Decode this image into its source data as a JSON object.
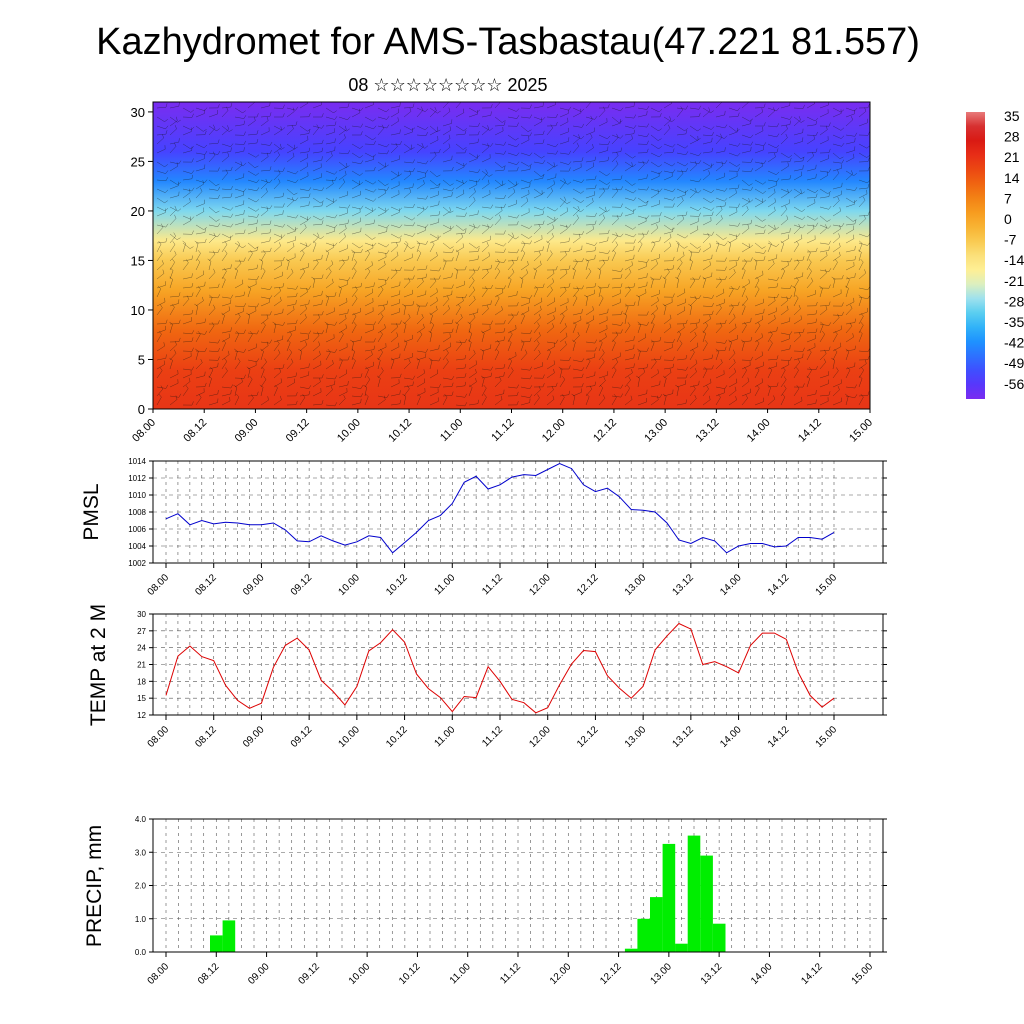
{
  "title": "Kazhydromet for AMS-Tasbastau(47.221 81.557)",
  "subtitle": "08 ☆☆☆☆☆☆☆☆ 2025",
  "colors": {
    "pmsl_line": "#0000cc",
    "temp_line": "#dd0000",
    "precip_bar": "#00ee00",
    "palette": [
      "#7a2cf0",
      "#4a3cff",
      "#2f6cff",
      "#1a9cff",
      "#47c8f0",
      "#a8e4ee",
      "#fff6a0",
      "#fbe07a",
      "#f8c040",
      "#f7a020",
      "#f27a12",
      "#ee5010",
      "#e62a18",
      "#d01010",
      "#e87a7a"
    ]
  },
  "chart_data": [
    {
      "type": "heatmap",
      "name": "temperature-height-section",
      "x_tick_labels": [
        "08.00",
        "08.12",
        "09.00",
        "09.12",
        "10.00",
        "10.12",
        "11.00",
        "11.12",
        "12.00",
        "12.12",
        "13.00",
        "13.12",
        "14.00",
        "14.12",
        "15.00"
      ],
      "y_tick_labels": [
        "0",
        "5",
        "10",
        "15",
        "20",
        "25",
        "30"
      ],
      "ylim": [
        0,
        31
      ],
      "colorbar_labels": [
        "35",
        "28",
        "21",
        "14",
        "7",
        "0",
        "-7",
        "-14",
        "-21",
        "-28",
        "-35",
        "-42",
        "-49",
        "-56"
      ],
      "levels": [
        {
          "z": 0,
          "v": 22
        },
        {
          "z": 4,
          "v": 20
        },
        {
          "z": 8,
          "v": 13
        },
        {
          "z": 12,
          "v": 2
        },
        {
          "z": 15,
          "v": -6
        },
        {
          "z": 17,
          "v": -14
        },
        {
          "z": 20,
          "v": -28
        },
        {
          "z": 23,
          "v": -42
        },
        {
          "z": 26,
          "v": -52
        },
        {
          "z": 31,
          "v": -60
        }
      ],
      "note": "filled temperature contours with overlaid wind barbs"
    },
    {
      "type": "line",
      "name": "pmsl",
      "ylabel": "PMSL",
      "ylim": [
        1002,
        1014
      ],
      "y_tick_labels": [
        "1002",
        "1004",
        "1006",
        "1008",
        "1010",
        "1012",
        "1014"
      ],
      "x_tick_labels": [
        "08.00",
        "08.12",
        "09.00",
        "09.12",
        "10.00",
        "10.12",
        "11.00",
        "11.12",
        "12.00",
        "12.12",
        "13.00",
        "13.12",
        "14.00",
        "14.12",
        "15.00"
      ],
      "series": [
        {
          "values": [
            1007.2,
            1007.8,
            1006.5,
            1007.0,
            1006.6,
            1006.8,
            1006.7,
            1006.5,
            1006.5,
            1006.7,
            1005.9,
            1004.6,
            1004.5,
            1005.2,
            1004.6,
            1004.1,
            1004.5,
            1005.2,
            1005.0,
            1003.2,
            1004.4,
            1005.6,
            1007.0,
            1007.6,
            1009.0,
            1011.5,
            1012.2,
            1010.7,
            1011.2,
            1012.1,
            1012.4,
            1012.3,
            1013.0,
            1013.7,
            1013.1,
            1011.2,
            1010.4,
            1010.8,
            1009.8,
            1008.3,
            1008.2,
            1008.0,
            1006.7,
            1004.7,
            1004.3,
            1005.0,
            1004.6,
            1003.2,
            1004.0,
            1004.3,
            1004.3,
            1003.9,
            1004.0,
            1005.0,
            1005.0,
            1004.8,
            1005.6
          ]
        }
      ]
    },
    {
      "type": "line",
      "name": "temp",
      "ylabel": "TEMP at 2 M",
      "ylim": [
        12,
        30
      ],
      "y_tick_labels": [
        "12",
        "15",
        "18",
        "21",
        "24",
        "27",
        "30"
      ],
      "x_tick_labels": [
        "08.00",
        "08.12",
        "09.00",
        "09.12",
        "10.00",
        "10.12",
        "11.00",
        "11.12",
        "12.00",
        "12.12",
        "13.00",
        "13.12",
        "14.00",
        "14.12",
        "15.00"
      ],
      "series": [
        {
          "values": [
            15.5,
            22.5,
            24.3,
            22.4,
            21.7,
            17.3,
            14.6,
            13.2,
            14.1,
            20.5,
            24.4,
            25.7,
            23.6,
            18.2,
            16.2,
            13.8,
            17.1,
            23.4,
            24.9,
            27.2,
            25.0,
            19.3,
            16.7,
            15.1,
            12.6,
            15.3,
            15.1,
            20.6,
            18.0,
            14.8,
            14.2,
            12.4,
            13.3,
            17.4,
            21.1,
            23.5,
            23.3,
            19.0,
            16.8,
            15.0,
            17.1,
            23.6,
            26.1,
            28.3,
            27.3,
            21.0,
            21.5,
            20.6,
            19.5,
            24.4,
            26.6,
            26.6,
            25.5,
            19.6,
            15.5,
            13.4,
            15.0
          ]
        }
      ]
    },
    {
      "type": "bar",
      "name": "precip",
      "ylabel": "PRECIP, mm",
      "ylim": [
        0,
        4
      ],
      "y_tick_labels": [
        "0.0",
        "1.0",
        "2.0",
        "3.0",
        "4.0"
      ],
      "x_tick_labels": [
        "08.00",
        "08.12",
        "09.00",
        "09.12",
        "10.00",
        "10.12",
        "11.00",
        "11.12",
        "12.00",
        "12.12",
        "13.00",
        "13.12",
        "14.00",
        "14.12",
        "15.00"
      ],
      "bars": [
        {
          "t": 4,
          "v": 0.5
        },
        {
          "t": 5,
          "v": 0.95
        },
        {
          "t": 37,
          "v": 0.1
        },
        {
          "t": 38,
          "v": 1.0
        },
        {
          "t": 39,
          "v": 1.65
        },
        {
          "t": 40,
          "v": 3.25
        },
        {
          "t": 41,
          "v": 0.25
        },
        {
          "t": 42,
          "v": 3.5
        },
        {
          "t": 43,
          "v": 2.9
        },
        {
          "t": 44,
          "v": 0.85
        }
      ]
    }
  ]
}
